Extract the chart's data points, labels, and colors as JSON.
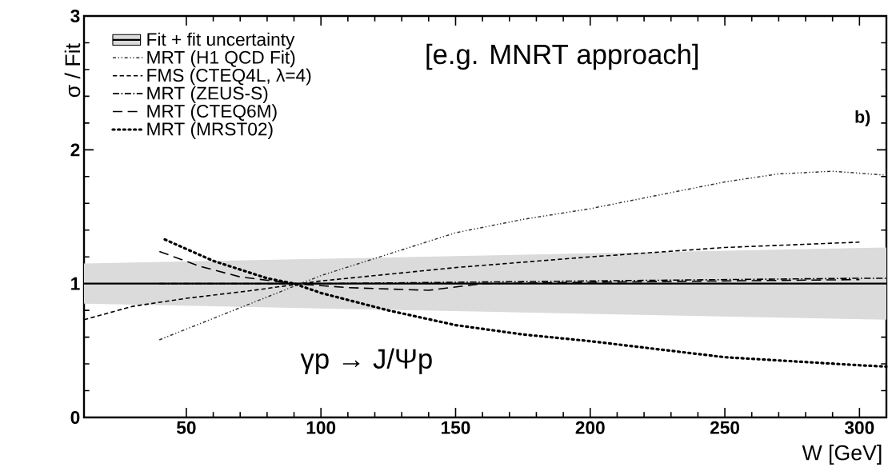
{
  "chart_data": {
    "type": "line",
    "xlabel": "W [GeV]",
    "ylabel": "σ / Fit",
    "xlim": [
      12,
      310
    ],
    "ylim": [
      0,
      3
    ],
    "xticks": [
      50,
      100,
      150,
      200,
      250,
      300
    ],
    "yticks": [
      0,
      1,
      2,
      3
    ],
    "grid": false,
    "legend": "top left",
    "marker": "none",
    "annotations": [
      "[e.g. MNRT approach]",
      "b)",
      "γp → J/Ψp"
    ],
    "series": [
      {
        "name": "Fit + fit uncertainty",
        "color": "#000000",
        "line_style": "solid",
        "x": [
          12,
          310
        ],
        "values": [
          1,
          1
        ],
        "lower": [
          0.85,
          0.73
        ],
        "upper": [
          1.15,
          1.27
        ]
      },
      {
        "name": "MRT (H1 QCD Fit)",
        "color": "#333333",
        "line_style": "dashdotdotted",
        "x": [
          40,
          60,
          80,
          100,
          125,
          150,
          175,
          200,
          225,
          250,
          270,
          290,
          310
        ],
        "values": [
          0.58,
          0.74,
          0.9,
          1.06,
          1.22,
          1.38,
          1.48,
          1.56,
          1.66,
          1.76,
          1.82,
          1.84,
          1.81
        ]
      },
      {
        "name": "FMS (CTEQ4L, λ=4)",
        "color": "#000000",
        "line_style": "dashed",
        "x": [
          12,
          30,
          50,
          75,
          100,
          150,
          200,
          250,
          300
        ],
        "values": [
          0.73,
          0.83,
          0.89,
          0.95,
          1.02,
          1.12,
          1.2,
          1.27,
          1.31
        ]
      },
      {
        "name": "MRT (ZEUS-S)",
        "color": "#000000",
        "line_style": "dashdotted",
        "x": [
          40,
          100,
          200,
          300,
          310
        ],
        "values": [
          1.0,
          1.0,
          1.02,
          1.04,
          1.04
        ]
      },
      {
        "name": "MRT (CTEQ6M)",
        "color": "#000000",
        "line_style": "longdashed",
        "x": [
          40,
          55,
          70,
          90,
          110,
          140,
          160,
          200,
          300
        ],
        "values": [
          1.24,
          1.13,
          1.05,
          1.0,
          0.97,
          0.95,
          1.0,
          1.01,
          1.03
        ]
      },
      {
        "name": "MRT (MRST02)",
        "color": "#000000",
        "line_style": "dotted",
        "x": [
          42,
          60,
          80,
          90,
          100,
          125,
          150,
          175,
          200,
          250,
          300,
          310
        ],
        "values": [
          1.33,
          1.17,
          1.04,
          1.0,
          0.93,
          0.8,
          0.69,
          0.62,
          0.57,
          0.45,
          0.39,
          0.38
        ]
      }
    ]
  }
}
